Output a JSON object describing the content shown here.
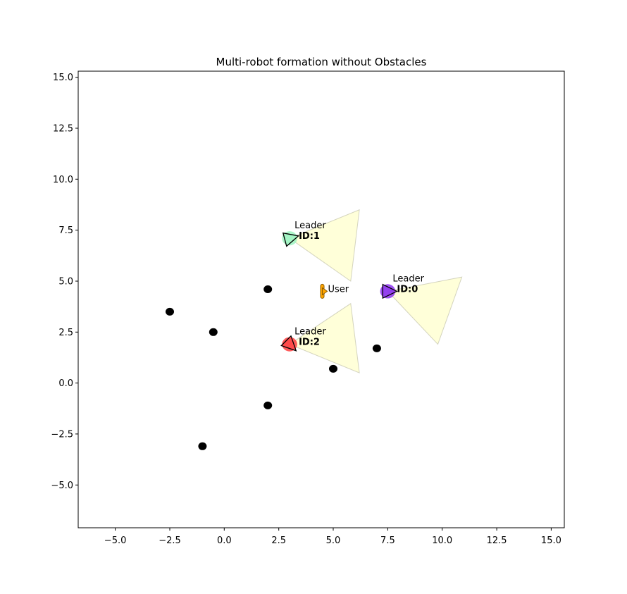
{
  "chart_data": {
    "type": "scatter",
    "title": "Multi-robot formation without Obstacles",
    "xlabel": "",
    "ylabel": "",
    "xlim": [
      -6.7,
      15.6
    ],
    "ylim": [
      -7.1,
      15.3
    ],
    "xticks": [
      -5.0,
      -2.5,
      0.0,
      2.5,
      5.0,
      7.5,
      10.0,
      12.5,
      15.0
    ],
    "xtick_labels": [
      "−5.0",
      "−2.5",
      "0.0",
      "2.5",
      "5.0",
      "7.5",
      "10.0",
      "12.5",
      "15.0"
    ],
    "yticks": [
      -5.0,
      -2.5,
      0.0,
      2.5,
      5.0,
      7.5,
      10.0,
      12.5,
      15.0
    ],
    "ytick_labels": [
      "−5.0",
      "−2.5",
      "0.0",
      "2.5",
      "5.0",
      "7.5",
      "10.0",
      "12.5",
      "15.0"
    ],
    "grid": false,
    "obstacles": [
      {
        "x": 2.0,
        "y": 4.6
      },
      {
        "x": -2.5,
        "y": 3.5
      },
      {
        "x": -0.5,
        "y": 2.5
      },
      {
        "x": 7.0,
        "y": 1.7
      },
      {
        "x": 5.0,
        "y": 0.7
      },
      {
        "x": 2.0,
        "y": -1.1
      },
      {
        "x": -1.0,
        "y": -3.1
      }
    ],
    "robots": [
      {
        "id_label": "ID:0",
        "role_label": "Leader",
        "x": 7.5,
        "y": 4.5,
        "color": "#8e35ef",
        "heading_deg": 0,
        "fov": [
          [
            7.5,
            4.5
          ],
          [
            10.9,
            5.2
          ],
          [
            9.8,
            1.9
          ]
        ]
      },
      {
        "id_label": "ID:1",
        "role_label": "Leader",
        "x": 3.0,
        "y": 7.1,
        "color": "#9ff5c1",
        "heading_deg": 15,
        "fov": [
          [
            3.0,
            7.1
          ],
          [
            6.2,
            8.5
          ],
          [
            5.8,
            5.0
          ]
        ]
      },
      {
        "id_label": "ID:2",
        "role_label": "Leader",
        "x": 3.0,
        "y": 1.9,
        "color": "#ff4040",
        "heading_deg": -45,
        "fov": [
          [
            3.0,
            1.9
          ],
          [
            5.8,
            3.9
          ],
          [
            6.2,
            0.5
          ]
        ]
      }
    ],
    "user": {
      "label": "User",
      "x": 4.5,
      "y": 4.5,
      "color": "#ffa500"
    },
    "fov_color": "#ffffcc"
  }
}
